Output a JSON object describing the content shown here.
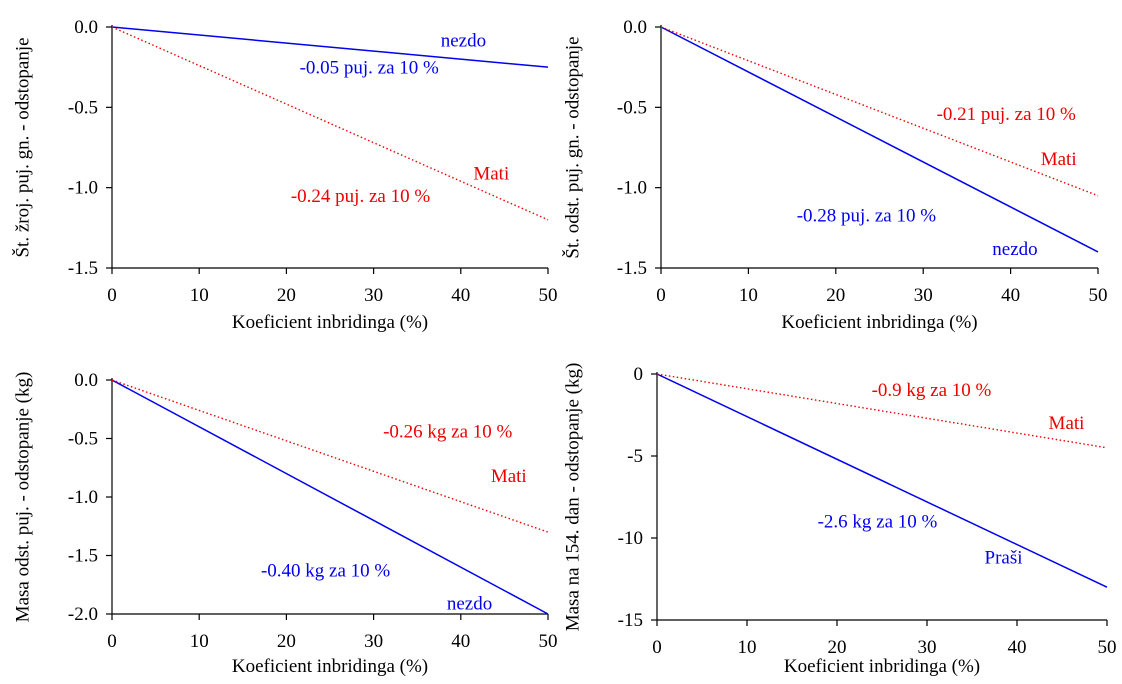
{
  "chart_data": [
    {
      "type": "line",
      "xlabel": "Koeficient inbridinga (%)",
      "ylabel": "Št. žroj. puj. gn. - odstopanje",
      "xlim": [
        0,
        50
      ],
      "ylim": [
        -1.5,
        0.0
      ],
      "xticks": [
        "0",
        "10",
        "20",
        "30",
        "40",
        "50"
      ],
      "yticks": [
        "0.0",
        "-0.5",
        "-1.0",
        "-1.5"
      ],
      "series": [
        {
          "name": "nezdo",
          "style": "solid",
          "color": "#0000ee",
          "x": [
            0,
            50
          ],
          "y": [
            0,
            -0.25
          ]
        },
        {
          "name": "Mati",
          "style": "dotted",
          "color": "#ee0000",
          "x": [
            0,
            50
          ],
          "y": [
            0,
            -1.2
          ]
        }
      ],
      "annotations": [
        {
          "text": "nezdo",
          "color": "#0000ee",
          "x": 40.3,
          "y": -0.12
        },
        {
          "text": "-0.05 puj. za 10 %",
          "color": "#0000ee",
          "x": 29.5,
          "y": -0.29
        },
        {
          "text": "Mati",
          "color": "#ee0000",
          "x": 43.5,
          "y": -0.95
        },
        {
          "text": "-0.24 puj. za 10 %",
          "color": "#ee0000",
          "x": 28.5,
          "y": -1.09
        }
      ]
    },
    {
      "type": "line",
      "xlabel": "Koeficient inbridinga (%)",
      "ylabel": "Št. odst. puj. gn. - odstopanje",
      "xlim": [
        0,
        50
      ],
      "ylim": [
        -1.5,
        0.0
      ],
      "xticks": [
        "0",
        "10",
        "20",
        "30",
        "40",
        "50"
      ],
      "yticks": [
        "0.0",
        "-0.5",
        "-1.0",
        "-1.5"
      ],
      "series": [
        {
          "name": "nezdo",
          "style": "solid",
          "color": "#0000ee",
          "x": [
            0,
            50
          ],
          "y": [
            0,
            -1.4
          ]
        },
        {
          "name": "Mati",
          "style": "dotted",
          "color": "#ee0000",
          "x": [
            0,
            50
          ],
          "y": [
            0,
            -1.05
          ]
        }
      ],
      "annotations": [
        {
          "text": "-0.21 puj. za 10 %",
          "color": "#ee0000",
          "x": 39.5,
          "y": -0.58
        },
        {
          "text": "Mati",
          "color": "#ee0000",
          "x": 45.5,
          "y": -0.86
        },
        {
          "text": "-0.28 puj. za 10 %",
          "color": "#0000ee",
          "x": 23.5,
          "y": -1.21
        },
        {
          "text": "nezdo",
          "color": "#0000ee",
          "x": 40.5,
          "y": -1.42
        }
      ]
    },
    {
      "type": "line",
      "xlabel": "Koeficient inbridinga (%)",
      "ylabel": "Masa odst. puj. - odstopanje (kg)",
      "xlim": [
        0,
        50
      ],
      "ylim": [
        -2.0,
        0.0
      ],
      "xticks": [
        "0",
        "10",
        "20",
        "30",
        "40",
        "50"
      ],
      "yticks": [
        "0.0",
        "-0.5",
        "-1.0",
        "-1.5",
        "-2.0"
      ],
      "series": [
        {
          "name": "nezdo",
          "style": "solid",
          "color": "#0000ee",
          "x": [
            0,
            50
          ],
          "y": [
            0,
            -2.0
          ]
        },
        {
          "name": "Mati",
          "style": "dotted",
          "color": "#ee0000",
          "x": [
            0,
            50
          ],
          "y": [
            0,
            -1.3
          ]
        }
      ],
      "annotations": [
        {
          "text": "-0.26 kg za 10 %",
          "color": "#ee0000",
          "x": 38.5,
          "y": -0.49
        },
        {
          "text": "Mati",
          "color": "#ee0000",
          "x": 45.5,
          "y": -0.87
        },
        {
          "text": "-0.40 kg za 10 %",
          "color": "#0000ee",
          "x": 24.5,
          "y": -1.68
        },
        {
          "text": "nezdo",
          "color": "#0000ee",
          "x": 41.0,
          "y": -1.96
        }
      ]
    },
    {
      "type": "line",
      "xlabel": "Koeficient inbridinga (%)",
      "ylabel": "Masa na 154. dan - odstopanje (kg)",
      "xlim": [
        0,
        50
      ],
      "ylim": [
        -15,
        0
      ],
      "xticks": [
        "0",
        "10",
        "20",
        "30",
        "40",
        "50"
      ],
      "yticks": [
        "0",
        "-5",
        "-10",
        "-15"
      ],
      "series": [
        {
          "name": "Praši",
          "style": "solid",
          "color": "#0000ee",
          "x": [
            0,
            50
          ],
          "y": [
            0,
            -13.0
          ]
        },
        {
          "name": "Mati",
          "style": "dotted",
          "color": "#ee0000",
          "x": [
            0,
            50
          ],
          "y": [
            0,
            -4.5
          ]
        }
      ],
      "annotations": [
        {
          "text": "-0.9 kg za 10 %",
          "color": "#ee0000",
          "x": 30.5,
          "y": -1.35
        },
        {
          "text": "Mati",
          "color": "#ee0000",
          "x": 45.5,
          "y": -3.35
        },
        {
          "text": "-2.6 kg za 10 %",
          "color": "#0000ee",
          "x": 24.5,
          "y": -9.35
        },
        {
          "text": "Praši",
          "color": "#0000ee",
          "x": 38.5,
          "y": -11.55
        }
      ]
    }
  ]
}
